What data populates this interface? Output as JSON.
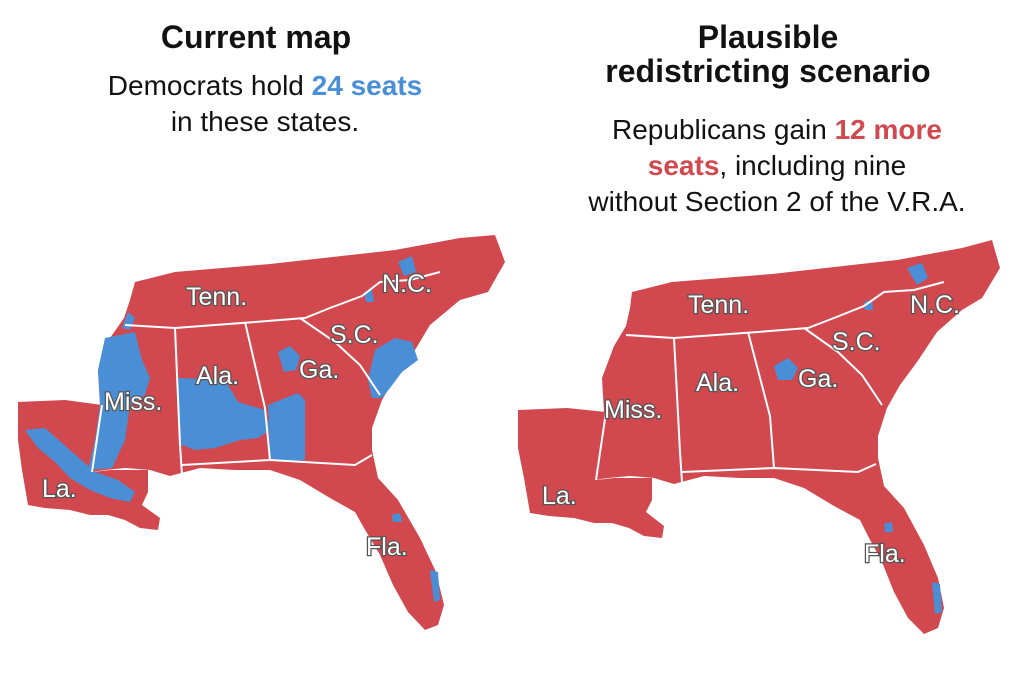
{
  "colors": {
    "democrat": "#4a8fd6",
    "republican": "#d2484f",
    "border": "#ffffff"
  },
  "left": {
    "title": "Current map",
    "subtitle_pre": "Democrats hold ",
    "subtitle_highlight": "24 seats",
    "subtitle_post": "in these states."
  },
  "right": {
    "title_line1": "Plausible",
    "title_line2": "redistricting scenario",
    "subtitle_pre": "Republicans gain ",
    "subtitle_highlight_a": "12 more",
    "subtitle_highlight_b": "seats",
    "subtitle_mid": ", including nine",
    "subtitle_post": "without Section 2 of the V.R.A."
  },
  "states": {
    "tenn": "Tenn.",
    "nc": "N.C.",
    "sc": "S.C.",
    "ga": "Ga.",
    "ala": "Ala.",
    "miss": "Miss.",
    "la": "La.",
    "fla": "Fla."
  }
}
